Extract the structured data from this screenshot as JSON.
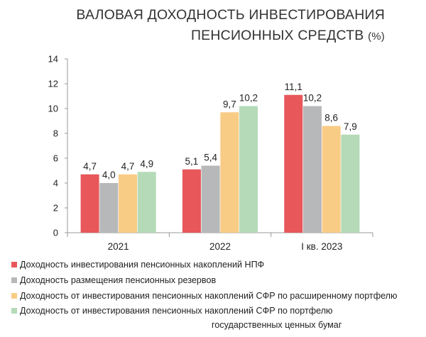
{
  "title_line1": "ВАЛОВАЯ ДОХОДНОСТЬ ИНВЕСТИРОВАНИЯ",
  "title_line2": "ПЕНСИОННЫХ СРЕДСТВ",
  "title_unit": "(%)",
  "legend": [
    "Доходность инвестирования пенсионных накоплений НПФ",
    "Доходность размещения пенсионных резервов",
    "Доходность от инвестирования пенсионных накоплений СФР по расширенному портфелю",
    "Доходность от инвестирования пенсионных накоплений СФР по портфелю государственных ценных бумаг"
  ],
  "legend_line1_last": "Доходность от инвестирования пенсионных накоплений СФР по портфелю",
  "legend_line2_last": "государственных ценных бумаг",
  "chart_data": {
    "type": "bar",
    "categories": [
      "2021",
      "2022",
      "I кв. 2023"
    ],
    "series": [
      {
        "values": [
          4.7,
          5.1,
          11.1
        ],
        "labels": [
          "4,7",
          "5,1",
          "11,1"
        ],
        "color": "#e8575a"
      },
      {
        "values": [
          4.0,
          5.4,
          10.2
        ],
        "labels": [
          "4,0",
          "5,4",
          "10,2"
        ],
        "color": "#b7b8ba"
      },
      {
        "values": [
          4.7,
          9.7,
          8.6
        ],
        "labels": [
          "4,7",
          "9,7",
          "8,6"
        ],
        "color": "#f9cc85"
      },
      {
        "values": [
          4.9,
          10.2,
          7.9
        ],
        "labels": [
          "4,9",
          "10,2",
          "7,9"
        ],
        "color": "#b5dab8"
      }
    ],
    "ylim": [
      0,
      14
    ],
    "yticks": [
      "0",
      "2",
      "4",
      "6",
      "8",
      "10",
      "12",
      "14"
    ],
    "grid": false,
    "legend_position": "bottom"
  }
}
